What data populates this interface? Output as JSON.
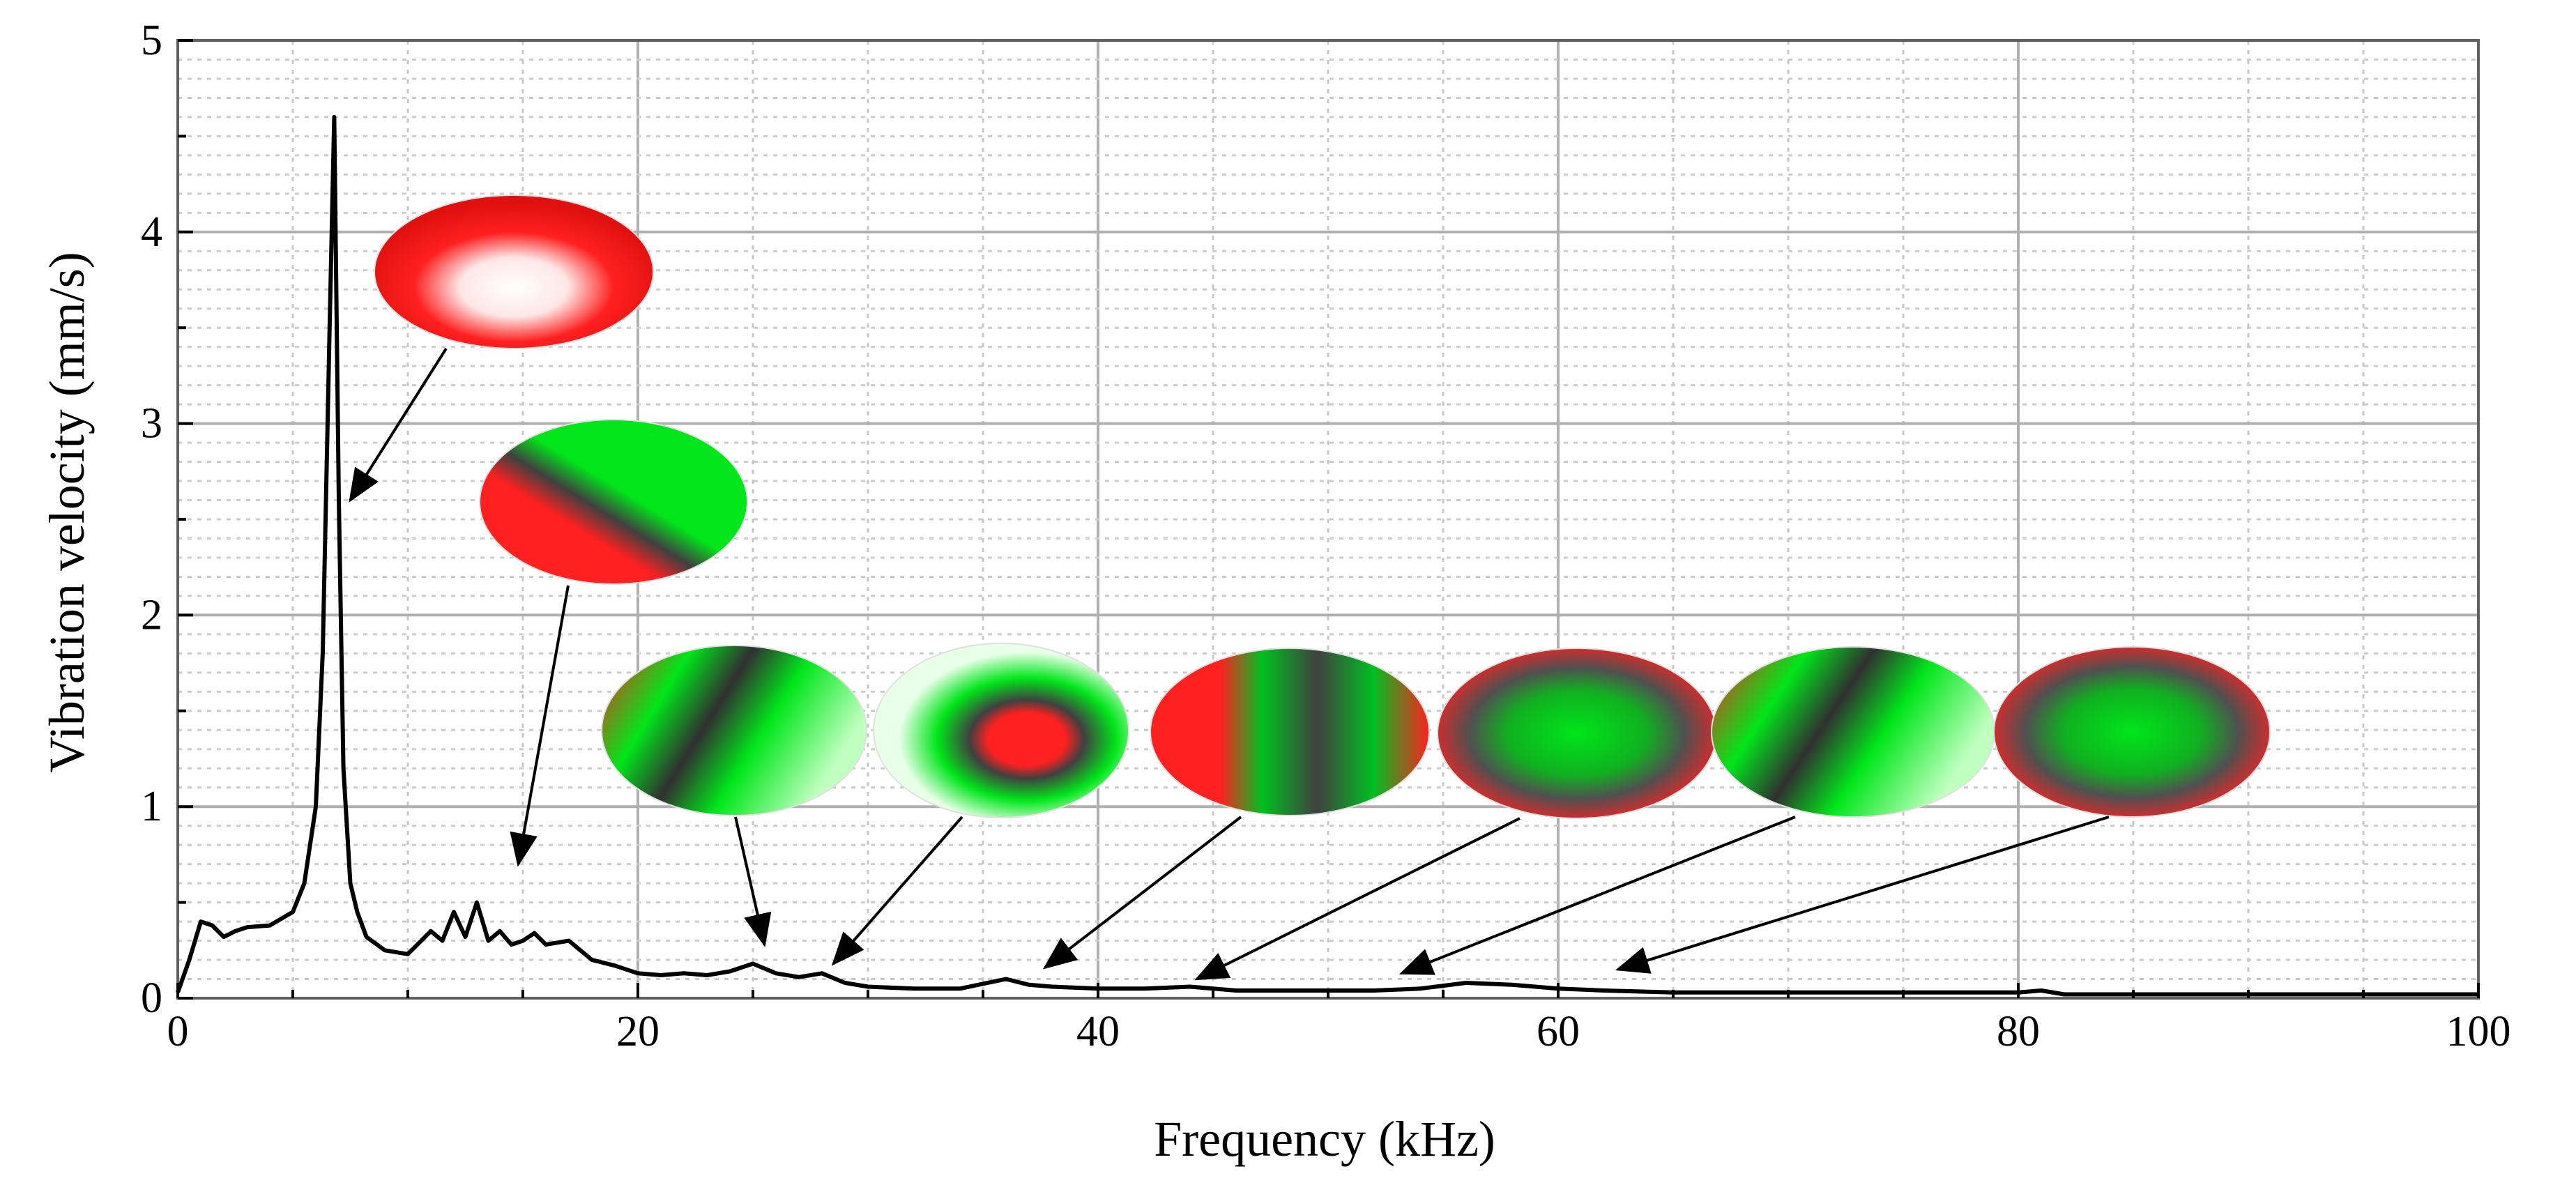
{
  "chart_data": {
    "type": "line",
    "title": "",
    "xlabel": "Frequency (kHz)",
    "ylabel": "Vibration velocity (mm/s)",
    "xlim": [
      0,
      100
    ],
    "ylim": [
      0,
      5
    ],
    "x_ticks": [
      "0",
      "20",
      "40",
      "60",
      "80",
      "100"
    ],
    "y_ticks": [
      "0",
      "1",
      "2",
      "3",
      "4",
      "5"
    ],
    "grid": true,
    "legend": "none",
    "line_color": "#000000",
    "series": [
      {
        "x": [
          0,
          0.5,
          1,
          1.5,
          2,
          2.5,
          3,
          4,
          5,
          5.5,
          6,
          6.3,
          6.6,
          6.8,
          7.0,
          7.2,
          7.5,
          7.8,
          8.2,
          9,
          10,
          11,
          11.5,
          12,
          12.5,
          13,
          13.5,
          14,
          14.5,
          15,
          15.5,
          16,
          17,
          18,
          19,
          20,
          21,
          22,
          23,
          24,
          25,
          26,
          27,
          28,
          29,
          30,
          32,
          34,
          36,
          37,
          38,
          40,
          42,
          44,
          46,
          48,
          50,
          52,
          54,
          56,
          58,
          60,
          62,
          65,
          70,
          75,
          80,
          81,
          82,
          85,
          90,
          95,
          100
        ],
        "y": [
          0.03,
          0.2,
          0.4,
          0.38,
          0.32,
          0.35,
          0.37,
          0.38,
          0.45,
          0.6,
          1.0,
          1.8,
          3.5,
          4.6,
          2.6,
          1.2,
          0.6,
          0.45,
          0.32,
          0.25,
          0.23,
          0.35,
          0.3,
          0.45,
          0.32,
          0.5,
          0.3,
          0.35,
          0.28,
          0.3,
          0.34,
          0.28,
          0.3,
          0.2,
          0.17,
          0.13,
          0.12,
          0.13,
          0.12,
          0.14,
          0.18,
          0.13,
          0.11,
          0.13,
          0.08,
          0.06,
          0.05,
          0.05,
          0.1,
          0.07,
          0.06,
          0.05,
          0.05,
          0.06,
          0.04,
          0.04,
          0.04,
          0.04,
          0.05,
          0.08,
          0.07,
          0.05,
          0.04,
          0.03,
          0.03,
          0.03,
          0.03,
          0.04,
          0.02,
          0.02,
          0.02,
          0.02,
          0.02
        ]
      }
    ],
    "mode_shapes": [
      {
        "icon": "mode-shape-fundamental",
        "points_to_x": 7.5,
        "points_to_y": 2.6
      },
      {
        "icon": "mode-shape-2",
        "points_to_x": 14.8,
        "points_to_y": 0.7
      },
      {
        "icon": "mode-shape-3",
        "points_to_x": 25.5,
        "points_to_y": 0.28
      },
      {
        "icon": "mode-shape-4",
        "points_to_x": 28.5,
        "points_to_y": 0.18
      },
      {
        "icon": "mode-shape-5",
        "points_to_x": 37.7,
        "points_to_y": 0.16
      },
      {
        "icon": "mode-shape-6",
        "points_to_x": 44.3,
        "points_to_y": 0.1
      },
      {
        "icon": "mode-shape-7",
        "points_to_x": 53.2,
        "points_to_y": 0.13
      },
      {
        "icon": "mode-shape-8",
        "points_to_x": 62.6,
        "points_to_y": 0.15
      }
    ],
    "colors": {
      "red": "#ff1a1a",
      "green": "#00e61a",
      "white": "#ffffff",
      "dark": "#404040"
    }
  }
}
